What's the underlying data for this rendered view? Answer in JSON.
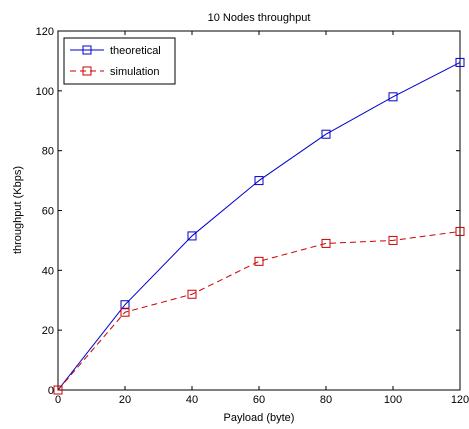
{
  "chart_data": {
    "type": "line",
    "title": "10 Nodes throughput",
    "xlabel": "Payload (byte)",
    "ylabel": "throughput (Kbps)",
    "xlim": [
      0,
      120
    ],
    "ylim": [
      0,
      120
    ],
    "xticks": [
      0,
      20,
      40,
      60,
      80,
      100,
      120
    ],
    "yticks": [
      0,
      20,
      40,
      60,
      80,
      100,
      120
    ],
    "grid": false,
    "legend_position": "top-left",
    "x": [
      0,
      20,
      40,
      60,
      80,
      100,
      120
    ],
    "series": [
      {
        "name": "theoretical",
        "values": [
          0,
          28.5,
          51.5,
          70,
          85.5,
          98,
          109.5
        ],
        "color": "#0000cc",
        "line_style": "solid",
        "marker": "square"
      },
      {
        "name": "simulation",
        "values": [
          0,
          26,
          32,
          43,
          49,
          50,
          53
        ],
        "color": "#cc0000",
        "line_style": "dashed",
        "marker": "square"
      }
    ]
  }
}
